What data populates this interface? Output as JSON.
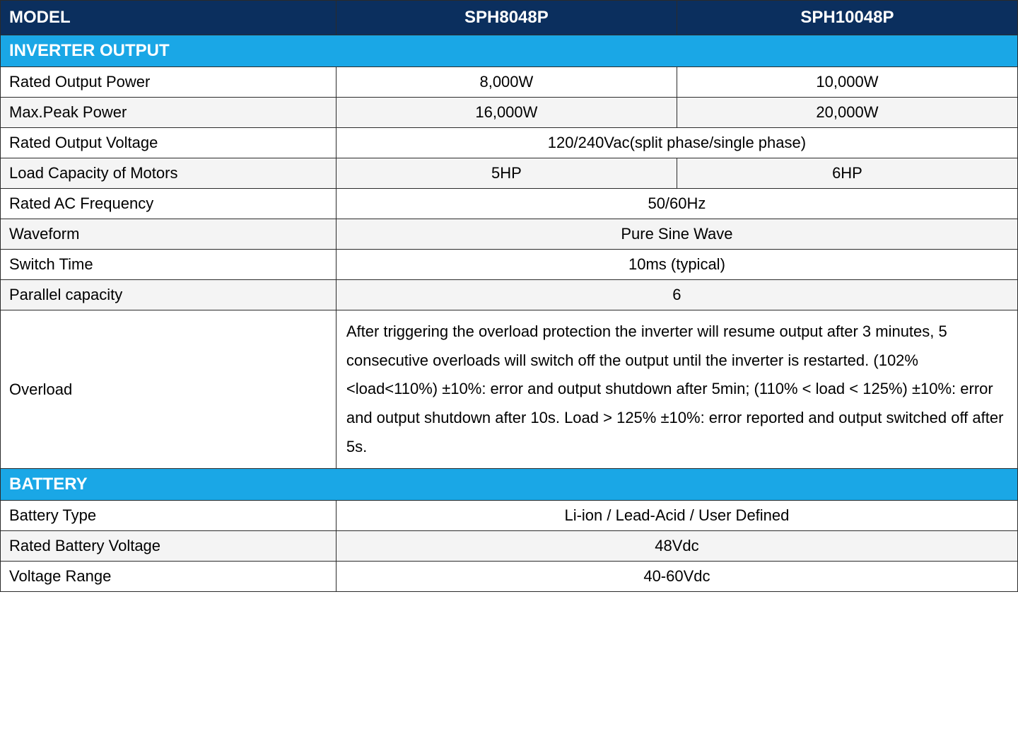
{
  "colors": {
    "header_bg": "#0b2f5e",
    "section_bg": "#1aa7e6",
    "alt_row_bg": "#f4f4f4",
    "border": "#2b2b2b",
    "text": "#000000",
    "header_text": "#ffffff"
  },
  "header": {
    "model_label": "MODEL",
    "model_a": "SPH8048P",
    "model_b": "SPH10048P"
  },
  "sections": {
    "inverter_output": "INVERTER OUTPUT",
    "battery": "BATTERY"
  },
  "inverter": {
    "rated_output_power": {
      "label": "Rated Output Power",
      "a": "8,000W",
      "b": "10,000W"
    },
    "max_peak_power": {
      "label": "Max.Peak Power",
      "a": "16,000W",
      "b": "20,000W"
    },
    "rated_output_voltage": {
      "label": "Rated Output Voltage",
      "value": "120/240Vac(split phase/single phase)"
    },
    "load_capacity_motors": {
      "label": "Load Capacity of Motors",
      "a": "5HP",
      "b": "6HP"
    },
    "rated_ac_frequency": {
      "label": "Rated AC Frequency",
      "value": "50/60Hz"
    },
    "waveform": {
      "label": "Waveform",
      "value": "Pure Sine Wave"
    },
    "switch_time": {
      "label": "Switch Time",
      "value": "10ms  (typical)"
    },
    "parallel_capacity": {
      "label": "Parallel capacity",
      "value": "6"
    },
    "overload": {
      "label": "Overload",
      "text": "After triggering the overload protection the inverter will resume output after 3 minutes, 5 consecutive overloads will switch off the output until the inverter is restarted. (102%<load<110%) ±10%: error and output shutdown after 5min; (110% < load < 125%) ±10%: error and output shutdown after 10s. Load > 125% ±10%: error reported and output switched off after 5s."
    }
  },
  "battery": {
    "battery_type": {
      "label": "Battery Type",
      "value": "Li-ion / Lead-Acid / User Defined"
    },
    "rated_battery_voltage": {
      "label": "Rated Battery Voltage",
      "value": "48Vdc"
    },
    "voltage_range": {
      "label": "Voltage Range",
      "value": "40-60Vdc"
    }
  }
}
